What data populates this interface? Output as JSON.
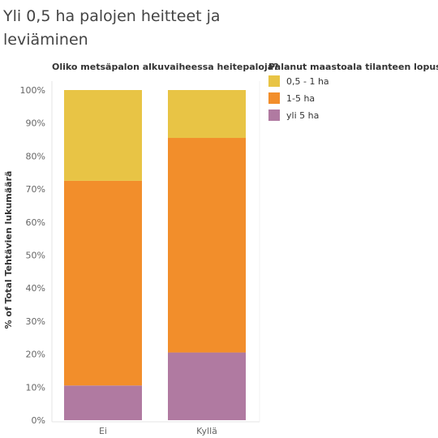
{
  "title": "Yli 0,5 ha palojen heitteet ja leviäminen",
  "chart_data": {
    "type": "bar",
    "stacked": true,
    "column_header": "Oliko metsäpalon alkuvaiheessa heitepaloja?",
    "ylabel": "% of Total Tehtävien lukumäärä",
    "categories": [
      "Ei",
      "Kyllä"
    ],
    "yticks": [
      "0%",
      "10%",
      "20%",
      "30%",
      "40%",
      "50%",
      "60%",
      "70%",
      "80%",
      "90%",
      "100%"
    ],
    "ylim": [
      0,
      100
    ],
    "legend_title": "Palanut maastoala tilanteen lopussa",
    "legend_position": "top-right",
    "grid": false,
    "series": [
      {
        "name": "yli 5 ha",
        "color": "#b07aa1",
        "values": [
          10.5,
          20.5
        ]
      },
      {
        "name": "1-5 ha",
        "color": "#f28e2b",
        "values": [
          62.0,
          65.0
        ]
      },
      {
        "name": "0,5 - 1 ha",
        "color": "#e8c445",
        "values": [
          27.5,
          14.5
        ]
      }
    ]
  }
}
